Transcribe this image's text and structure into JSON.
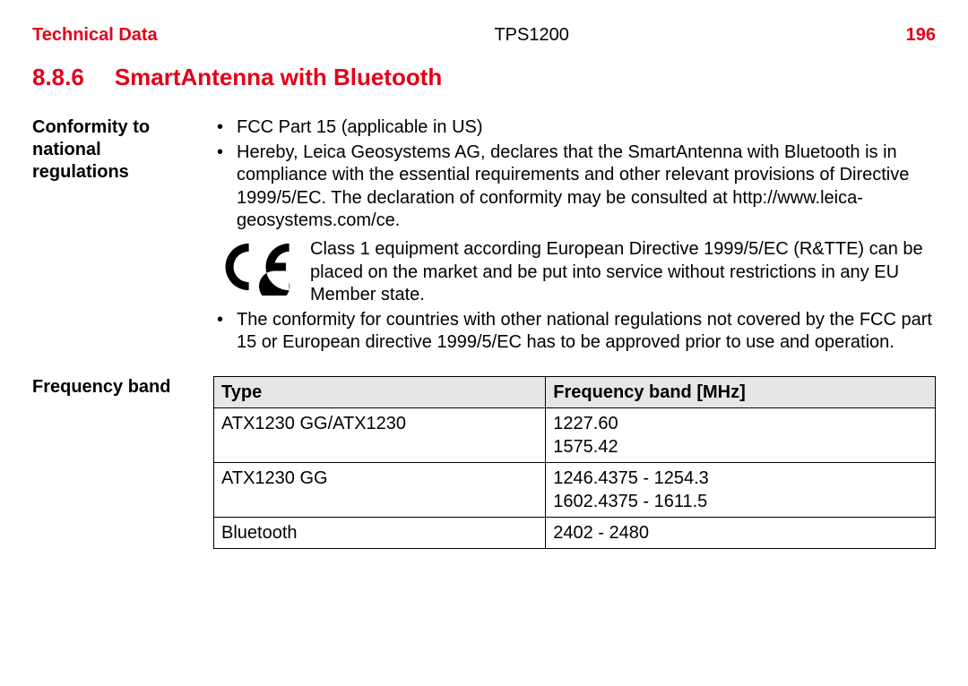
{
  "colors": {
    "accent": "#e2001a",
    "text": "#000000",
    "table_header_bg": "#e6e6e6",
    "table_border": "#000000",
    "page_bg": "#ffffff"
  },
  "typography": {
    "body_fontsize_pt": 15,
    "heading_fontsize_pt": 20,
    "font_family": "Arial"
  },
  "header": {
    "left": "Technical Data",
    "center": "TPS1200",
    "page_number": "196"
  },
  "section": {
    "number": "8.8.6",
    "title": "SmartAntenna with Bluetooth"
  },
  "conformity": {
    "label": "Conformity to national regulations",
    "bullet1": "FCC Part 15 (applicable in US)",
    "bullet2": "Hereby, Leica Geosystems AG, declares that the SmartAntenna with Bluetooth is in compliance with the essential requirements and other relevant provisions of Directive 1999/5/EC. The declaration of conformity may be consulted at http://www.leica-geosystems.com/ce.",
    "ce_text": "Class 1 equipment according European Directive 1999/5/EC (R&TTE) can be placed on the market and be put into service without restrictions in any EU Member state.",
    "bullet3": "The conformity for countries with other national regulations not covered by the FCC part 15 or European directive 1999/5/EC has to be approved prior to use and operation."
  },
  "frequency": {
    "label": "Frequency band",
    "table": {
      "type": "table",
      "columns": [
        "Type",
        "Frequency band [MHz]"
      ],
      "rows": [
        [
          "ATX1230 GG/ATX1230",
          "1227.60\n1575.42"
        ],
        [
          "ATX1230 GG",
          "1246.4375 - 1254.3\n1602.4375 - 1611.5"
        ],
        [
          "Bluetooth",
          "2402 - 2480"
        ]
      ],
      "header_bg": "#e6e6e6",
      "border_color": "#000000",
      "col_widths_pct": [
        46,
        54
      ]
    }
  }
}
